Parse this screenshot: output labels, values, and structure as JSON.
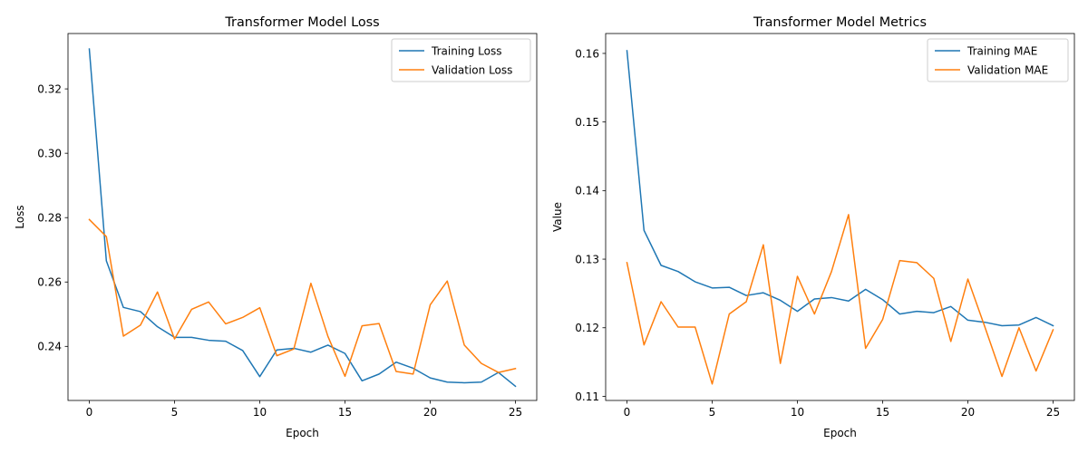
{
  "chart_data": [
    {
      "type": "line",
      "title": "Transformer Model Loss",
      "xlabel": "Epoch",
      "ylabel": "Loss",
      "xlim": [
        -1.25,
        26.25
      ],
      "ylim": [
        0.2232,
        0.3372
      ],
      "xticks": [
        0,
        5,
        10,
        15,
        20,
        25
      ],
      "xtick_labels": [
        "0",
        "5",
        "10",
        "15",
        "20",
        "25"
      ],
      "yticks": [
        0.24,
        0.26,
        0.28,
        0.3,
        0.32
      ],
      "ytick_labels": [
        "0.24",
        "0.26",
        "0.28",
        "0.30",
        "0.32"
      ],
      "legend": "upper right",
      "grid": false,
      "x": [
        0,
        1,
        2,
        3,
        4,
        5,
        6,
        7,
        8,
        9,
        10,
        11,
        12,
        13,
        14,
        15,
        16,
        17,
        18,
        19,
        20,
        21,
        22,
        23,
        24,
        25
      ],
      "series": [
        {
          "name": "Training Loss",
          "color": "#1f77b4",
          "values": [
            0.3324,
            0.2666,
            0.2521,
            0.2508,
            0.2461,
            0.2428,
            0.2428,
            0.2419,
            0.2416,
            0.2387,
            0.2306,
            0.2389,
            0.2394,
            0.2382,
            0.2404,
            0.2378,
            0.2293,
            0.2314,
            0.2351,
            0.2332,
            0.2302,
            0.2289,
            0.2287,
            0.2289,
            0.2319,
            0.2276
          ]
        },
        {
          "name": "Validation Loss",
          "color": "#ff7f0e",
          "values": [
            0.2794,
            0.2741,
            0.2432,
            0.2466,
            0.2569,
            0.2423,
            0.2515,
            0.2538,
            0.247,
            0.249,
            0.252,
            0.2371,
            0.2392,
            0.2596,
            0.2431,
            0.2307,
            0.2464,
            0.2471,
            0.2322,
            0.2314,
            0.2529,
            0.2603,
            0.2404,
            0.2347,
            0.2319,
            0.2331
          ]
        }
      ]
    },
    {
      "type": "line",
      "title": "Transformer Model Metrics",
      "xlabel": "Epoch",
      "ylabel": "Value",
      "xlim": [
        -1.25,
        26.25
      ],
      "ylim": [
        0.1094,
        0.1629
      ],
      "xticks": [
        0,
        5,
        10,
        15,
        20,
        25
      ],
      "xtick_labels": [
        "0",
        "5",
        "10",
        "15",
        "20",
        "25"
      ],
      "yticks": [
        0.11,
        0.12,
        0.13,
        0.14,
        0.15,
        0.16
      ],
      "ytick_labels": [
        "0.11",
        "0.12",
        "0.13",
        "0.14",
        "0.15",
        "0.16"
      ],
      "legend": "upper right",
      "grid": false,
      "x": [
        0,
        1,
        2,
        3,
        4,
        5,
        6,
        7,
        8,
        9,
        10,
        11,
        12,
        13,
        14,
        15,
        16,
        17,
        18,
        19,
        20,
        21,
        22,
        23,
        24,
        25
      ],
      "series": [
        {
          "name": "Training MAE",
          "color": "#1f77b4",
          "values": [
            0.1604,
            0.1342,
            0.1291,
            0.1282,
            0.1267,
            0.1258,
            0.1259,
            0.1247,
            0.1251,
            0.124,
            0.1224,
            0.1242,
            0.1244,
            0.1239,
            0.1256,
            0.1241,
            0.122,
            0.1224,
            0.1222,
            0.1231,
            0.1211,
            0.1208,
            0.1203,
            0.1204,
            0.1215,
            0.1203
          ]
        },
        {
          "name": "Validation MAE",
          "color": "#ff7f0e",
          "values": [
            0.1295,
            0.1175,
            0.1238,
            0.1201,
            0.1201,
            0.1118,
            0.122,
            0.1238,
            0.1321,
            0.1148,
            0.1275,
            0.122,
            0.1282,
            0.1365,
            0.117,
            0.1212,
            0.1298,
            0.1295,
            0.1272,
            0.118,
            0.1271,
            0.1201,
            0.1129,
            0.12,
            0.1137,
            0.1197
          ]
        }
      ]
    }
  ]
}
